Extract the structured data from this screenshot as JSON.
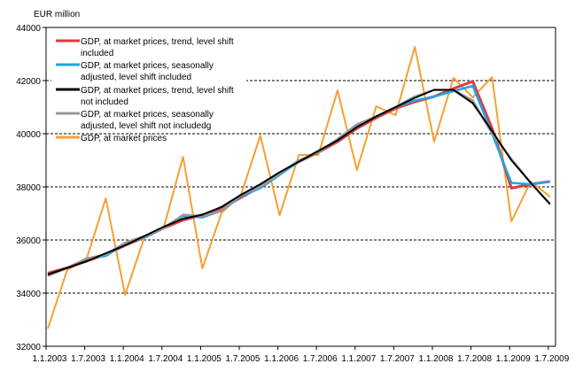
{
  "chart_data": {
    "type": "line",
    "title": "",
    "ylabel": "EUR million",
    "xlabel": "",
    "ylim": [
      32000,
      44000
    ],
    "yticks": [
      32000,
      34000,
      36000,
      38000,
      40000,
      42000,
      44000
    ],
    "ytick_labels": [
      "32000",
      "34000",
      "36000",
      "38000",
      "40000",
      "42000",
      "44000"
    ],
    "xtick_labels": [
      "1.1.2003",
      "1.7.2003",
      "1.1.2004",
      "1.7.2004",
      "1.1.2005",
      "1.7.2005",
      "1.1.2006",
      "1.7.2006",
      "1.1.2007",
      "1.7.2007",
      "1.1.2008",
      "1.7.2008",
      "1.1.2009",
      "1.7.2009"
    ],
    "x": [
      "2003Q1",
      "2003Q2",
      "2003Q3",
      "2003Q4",
      "2004Q1",
      "2004Q2",
      "2004Q3",
      "2004Q4",
      "2005Q1",
      "2005Q2",
      "2005Q3",
      "2005Q4",
      "2006Q1",
      "2006Q2",
      "2006Q3",
      "2006Q4",
      "2007Q1",
      "2007Q2",
      "2007Q3",
      "2007Q4",
      "2008Q1",
      "2008Q2",
      "2008Q3",
      "2008Q4",
      "2009Q1",
      "2009Q2",
      "2009Q3"
    ],
    "grid": "horizontal dashed",
    "legend_placement": "top-left",
    "series": [
      {
        "name": "GDP, at market prices, trend, level shift included",
        "color": "#e03a3a",
        "values": [
          34750,
          34950,
          35200,
          35450,
          35800,
          36100,
          36450,
          36750,
          36950,
          37200,
          37600,
          38000,
          38500,
          38950,
          39300,
          39700,
          40200,
          40600,
          40950,
          41200,
          41400,
          41700,
          41970,
          40200,
          37950,
          38100,
          38200
        ]
      },
      {
        "name": "GDP, at market prices, seasonally adjusted, level shift included",
        "color": "#1ea6e6",
        "values": [
          34650,
          34950,
          35300,
          35400,
          35850,
          36100,
          36450,
          36900,
          36850,
          37100,
          37650,
          37950,
          38450,
          38950,
          39350,
          39750,
          40300,
          40650,
          41000,
          41250,
          41400,
          41600,
          41800,
          40000,
          38150,
          38100,
          38200
        ]
      },
      {
        "name": "GDP, at market prices, trend, level shift not included",
        "color": "#000000",
        "values": [
          34700,
          34950,
          35200,
          35500,
          35800,
          36150,
          36500,
          36800,
          36950,
          37250,
          37700,
          38100,
          38550,
          38950,
          39350,
          39750,
          40250,
          40650,
          41000,
          41350,
          41650,
          41650,
          41150,
          40100,
          39000,
          38150,
          37350
        ]
      },
      {
        "name": "GDP, at market prices, seasonally adjusted, level shift not includedg",
        "color": "#999999",
        "values": [
          34650,
          34950,
          35300,
          35450,
          35900,
          36150,
          36450,
          36950,
          36900,
          37100,
          37700,
          38000,
          38500,
          39000,
          39300,
          39800,
          40350,
          40650,
          41000,
          41400,
          41650,
          41650,
          41250,
          40000,
          39050,
          38150,
          37350
        ]
      },
      {
        "name": "GDP, at market prices",
        "color": "#f5a032",
        "values": [
          32670,
          34870,
          35270,
          37570,
          33930,
          36100,
          36470,
          39130,
          34930,
          37030,
          37700,
          39930,
          36930,
          39200,
          39200,
          41630,
          38630,
          41030,
          40700,
          43270,
          39700,
          42100,
          41370,
          42130,
          36700,
          38200,
          37630
        ]
      }
    ]
  }
}
